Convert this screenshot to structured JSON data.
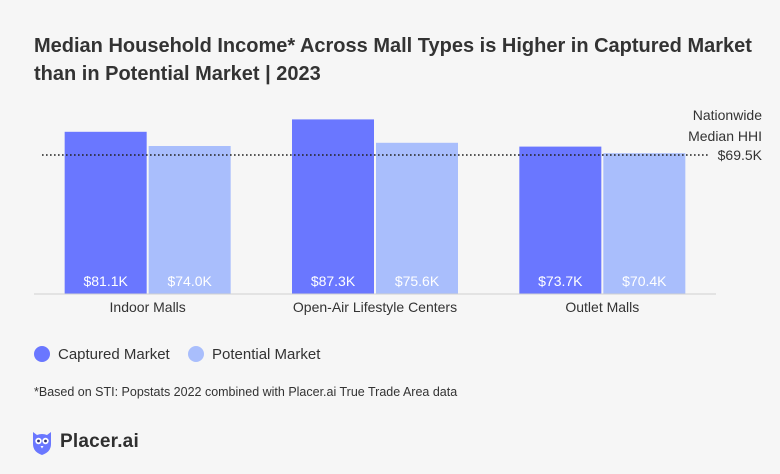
{
  "title": "Median Household Income* Across Mall Types is Higher in Captured Market than in Potential Market | 2023",
  "footnote": "*Based on STI: Popstats 2022 combined with Placer.ai True Trade Area data",
  "logo": {
    "text": "Placer.ai",
    "icon": "owl-icon"
  },
  "colors": {
    "captured": "#6a77ff",
    "potential": "#a9befc",
    "background": "#f6f6f6",
    "reference_line": "#222222"
  },
  "chart_data": {
    "type": "bar",
    "categories": [
      "Indoor Malls",
      "Open-Air Lifestyle Centers",
      "Outlet Malls"
    ],
    "series": [
      {
        "name": "Captured Market",
        "values": [
          81.1,
          87.3,
          73.7
        ],
        "labels": [
          "$81.1K",
          "$87.3K",
          "$73.7K"
        ],
        "color": "#6a77ff"
      },
      {
        "name": "Potential Market",
        "values": [
          74.0,
          75.6,
          70.4
        ],
        "labels": [
          "$74.0K",
          "$75.6K",
          "$70.4K"
        ],
        "color": "#a9befc"
      }
    ],
    "reference_line": {
      "value": 69.5,
      "label_lines": [
        "Nationwide",
        "Median HHI"
      ],
      "value_label": "$69.5K",
      "style": "dotted"
    },
    "ylim": [
      0,
      100
    ],
    "legend": "bottom-left",
    "grid": false
  }
}
